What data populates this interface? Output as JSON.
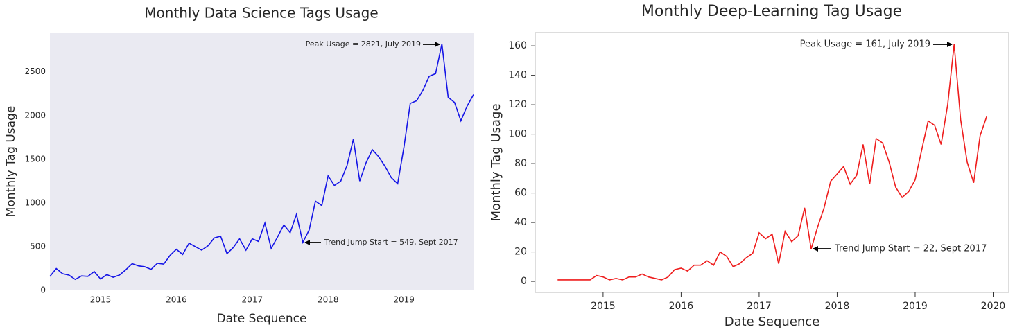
{
  "chart_data": [
    {
      "type": "line",
      "title": "Monthly Data Science Tags Usage",
      "xlabel": "Date Sequence",
      "ylabel": "Monthly Tag Usage",
      "x": [
        2014.333,
        2014.417,
        2014.5,
        2014.583,
        2014.667,
        2014.75,
        2014.833,
        2014.917,
        2015.0,
        2015.083,
        2015.167,
        2015.25,
        2015.333,
        2015.417,
        2015.5,
        2015.583,
        2015.667,
        2015.75,
        2015.833,
        2015.917,
        2016.0,
        2016.083,
        2016.167,
        2016.25,
        2016.333,
        2016.417,
        2016.5,
        2016.583,
        2016.667,
        2016.75,
        2016.833,
        2016.917,
        2017.0,
        2017.083,
        2017.167,
        2017.25,
        2017.333,
        2017.417,
        2017.5,
        2017.583,
        2017.667,
        2017.75,
        2017.833,
        2017.917,
        2018.0,
        2018.083,
        2018.167,
        2018.25,
        2018.333,
        2018.417,
        2018.5,
        2018.583,
        2018.667,
        2018.75,
        2018.833,
        2018.917,
        2019.0,
        2019.083,
        2019.167,
        2019.25,
        2019.333,
        2019.417,
        2019.5,
        2019.583,
        2019.667,
        2019.75,
        2019.833,
        2019.917
      ],
      "series": [
        {
          "name": "Data Science",
          "color": "#1414e6",
          "values": [
            160,
            250,
            190,
            175,
            125,
            165,
            160,
            215,
            130,
            180,
            150,
            175,
            235,
            305,
            280,
            270,
            240,
            310,
            300,
            400,
            470,
            410,
            540,
            500,
            460,
            510,
            600,
            620,
            420,
            490,
            590,
            460,
            590,
            560,
            770,
            480,
            610,
            750,
            660,
            870,
            549,
            690,
            1020,
            970,
            1310,
            1200,
            1250,
            1430,
            1730,
            1250,
            1460,
            1610,
            1530,
            1420,
            1290,
            1220,
            1640,
            2140,
            2170,
            2290,
            2450,
            2480,
            2821,
            2210,
            2150,
            1940,
            2110,
            2240
          ]
        }
      ],
      "xlim": [
        2014.333,
        2019.917
      ],
      "xticks": [
        2015,
        2016,
        2017,
        2018,
        2019
      ],
      "ylim": [
        0,
        2950
      ],
      "yticks": [
        0,
        500,
        1000,
        1500,
        2000,
        2500
      ],
      "background": "#eaeaf2",
      "frame": false,
      "tick_marks": false,
      "annotations": [
        {
          "text": "Peak Usage = 2821, July 2019"
        },
        {
          "text": "Trend Jump Start = 549, Sept 2017"
        }
      ]
    },
    {
      "type": "line",
      "title": "Monthly Deep-Learning Tag Usage",
      "xlabel": "Date Sequence",
      "ylabel": "Monthly Tag Usage",
      "x": [
        2014.417,
        2014.5,
        2014.583,
        2014.667,
        2014.75,
        2014.833,
        2014.917,
        2015.0,
        2015.083,
        2015.167,
        2015.25,
        2015.333,
        2015.417,
        2015.5,
        2015.583,
        2015.667,
        2015.75,
        2015.833,
        2015.917,
        2016.0,
        2016.083,
        2016.167,
        2016.25,
        2016.333,
        2016.417,
        2016.5,
        2016.583,
        2016.667,
        2016.75,
        2016.833,
        2016.917,
        2017.0,
        2017.083,
        2017.167,
        2017.25,
        2017.333,
        2017.417,
        2017.5,
        2017.583,
        2017.667,
        2017.75,
        2017.833,
        2017.917,
        2018.0,
        2018.083,
        2018.167,
        2018.25,
        2018.333,
        2018.417,
        2018.5,
        2018.583,
        2018.667,
        2018.75,
        2018.833,
        2018.917,
        2019.0,
        2019.083,
        2019.167,
        2019.25,
        2019.333,
        2019.417,
        2019.5,
        2019.583,
        2019.667,
        2019.75,
        2019.833,
        2019.917
      ],
      "series": [
        {
          "name": "Deep Learning",
          "color": "#ee1c1c",
          "values": [
            1,
            1,
            1,
            1,
            1,
            1,
            4,
            3,
            1,
            2,
            1,
            3,
            3,
            5,
            3,
            2,
            1,
            3,
            8,
            9,
            7,
            11,
            11,
            14,
            11,
            20,
            17,
            10,
            12,
            16,
            19,
            33,
            29,
            32,
            12,
            34,
            27,
            31,
            50,
            22,
            37,
            50,
            68,
            73,
            78,
            66,
            72,
            93,
            66,
            97,
            94,
            81,
            64,
            57,
            61,
            69,
            89,
            109,
            106,
            93,
            120,
            161,
            110,
            81,
            67,
            99,
            112
          ]
        }
      ],
      "xlim": [
        2014.13,
        2020.2
      ],
      "xticks": [
        2015,
        2016,
        2017,
        2018,
        2019,
        2020
      ],
      "ylim": [
        -7.5,
        169
      ],
      "yticks": [
        0,
        20,
        40,
        60,
        80,
        100,
        120,
        140,
        160
      ],
      "background": "#ffffff",
      "frame": true,
      "tick_marks": true,
      "annotations": [
        {
          "text": "Peak Usage = 161, July 2019"
        },
        {
          "text": "Trend Jump Start = 22, Sept 2017"
        }
      ]
    }
  ]
}
